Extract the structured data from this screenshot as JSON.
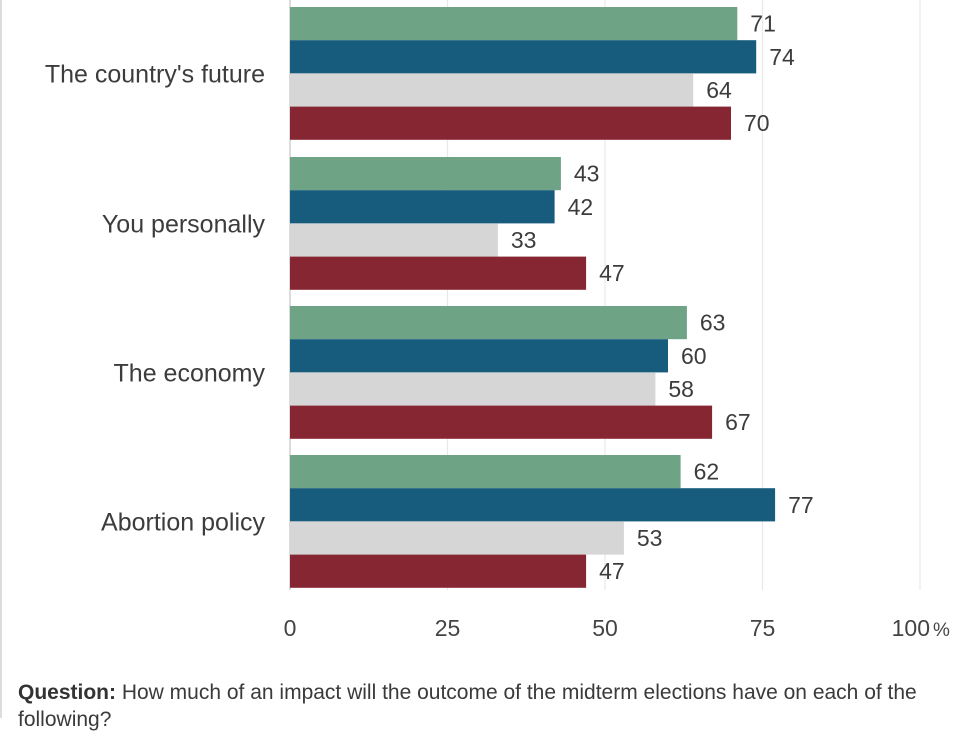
{
  "chart_data": {
    "type": "bar",
    "orientation": "horizontal",
    "categories": [
      "The country's future",
      "You personally",
      "The economy",
      "Abortion policy"
    ],
    "series": [
      {
        "color": "#6fa386",
        "values": [
          71,
          43,
          63,
          62
        ]
      },
      {
        "color": "#175c7d",
        "values": [
          74,
          42,
          60,
          77
        ]
      },
      {
        "color": "#d6d6d6",
        "values": [
          64,
          33,
          58,
          53
        ]
      },
      {
        "color": "#862633",
        "values": [
          70,
          47,
          67,
          47
        ]
      }
    ],
    "x_ticks": [
      "0",
      "25",
      "50",
      "75",
      "100"
    ],
    "x_unit": "%",
    "xlim": [
      0,
      100
    ],
    "grid": true
  },
  "footnote": {
    "label": "Question:",
    "text": " How much of an impact will the outcome of the midterm elections have on each of the following?"
  }
}
